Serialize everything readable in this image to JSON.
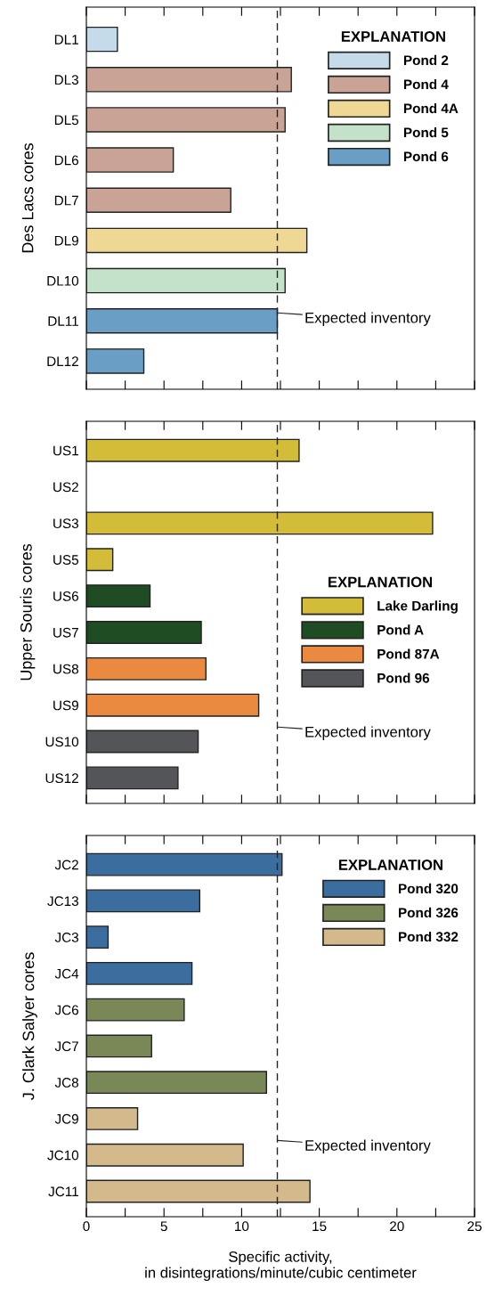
{
  "chart_data": [
    {
      "type": "bar",
      "orientation": "horizontal",
      "ylabel": "Des Lacs cores",
      "legend_title": "EXPLANATION",
      "legend": "top right",
      "grid": false,
      "tick_labels": "y",
      "categories": [
        "DL1",
        "DL3",
        "DL5",
        "DL6",
        "DL7",
        "DL9",
        "DL10",
        "DL11",
        "DL12"
      ],
      "series": [
        {
          "name": "Pond 2",
          "color": "#c5dbe9",
          "values": [
            2.0,
            null,
            null,
            null,
            null,
            null,
            null,
            null,
            null
          ]
        },
        {
          "name": "Pond 4",
          "color": "#c9a496",
          "values": [
            null,
            13.2,
            12.8,
            5.6,
            9.3,
            null,
            null,
            null,
            null
          ]
        },
        {
          "name": "Pond 4A",
          "color": "#eed894",
          "values": [
            null,
            null,
            null,
            null,
            null,
            14.2,
            null,
            null,
            null
          ]
        },
        {
          "name": "Pond 5",
          "color": "#c3e2c9",
          "values": [
            null,
            null,
            null,
            null,
            null,
            null,
            12.8,
            null,
            null
          ]
        },
        {
          "name": "Pond 6",
          "color": "#6a9ec4",
          "values": [
            null,
            null,
            null,
            null,
            null,
            null,
            null,
            12.3,
            3.7
          ]
        }
      ],
      "xlim": [
        0,
        25
      ],
      "xticks": [
        0,
        {
          "value": 2.5,
          "label": null
        },
        5,
        {
          "value": 7.5,
          "label": null
        },
        10,
        {
          "value": 12.5,
          "label": null
        },
        15,
        {
          "value": 17.5,
          "label": null
        },
        20,
        {
          "value": 22.5,
          "label": null
        },
        25
      ],
      "ref_lines": [
        {
          "axis": "x",
          "value": 12.3,
          "label": "Expected inventory",
          "line_style": "dashed"
        }
      ]
    },
    {
      "type": "bar",
      "orientation": "horizontal",
      "ylabel": "Upper Souris cores",
      "legend_title": "EXPLANATION",
      "legend": "right",
      "grid": false,
      "tick_labels": "y",
      "categories": [
        "US1",
        "US2",
        "US3",
        "US5",
        "US6",
        "US7",
        "US8",
        "US9",
        "US10",
        "US12"
      ],
      "series": [
        {
          "name": "Lake Darling",
          "color": "#d3bd38",
          "values": [
            13.7,
            null,
            22.3,
            1.7,
            null,
            null,
            null,
            null,
            null,
            null
          ]
        },
        {
          "name": "Pond A",
          "color": "#204c24",
          "values": [
            null,
            null,
            null,
            null,
            4.1,
            7.4,
            null,
            null,
            null,
            null
          ]
        },
        {
          "name": "Pond 87A",
          "color": "#ea8a40",
          "values": [
            null,
            null,
            null,
            null,
            null,
            null,
            7.7,
            11.1,
            null,
            null
          ]
        },
        {
          "name": "Pond 96",
          "color": "#545558",
          "values": [
            null,
            null,
            null,
            null,
            null,
            null,
            null,
            null,
            7.2,
            5.9
          ]
        }
      ],
      "xlim": [
        0,
        25
      ],
      "xticks": [
        0,
        {
          "value": 2.5,
          "label": null
        },
        5,
        {
          "value": 7.5,
          "label": null
        },
        10,
        {
          "value": 12.5,
          "label": null
        },
        15,
        {
          "value": 17.5,
          "label": null
        },
        20,
        {
          "value": 22.5,
          "label": null
        },
        25
      ],
      "ref_lines": [
        {
          "axis": "x",
          "value": 12.3,
          "label": "Expected inventory",
          "line_style": "dashed"
        }
      ]
    },
    {
      "type": "bar",
      "orientation": "horizontal",
      "ylabel": "J. Clark Salyer cores",
      "xlabel": "Specific activity,\nin disintegrations/minute/cubic centimeter",
      "legend_title": "EXPLANATION",
      "legend": "top right",
      "grid": false,
      "categories": [
        "JC2",
        "JC13",
        "JC3",
        "JC4",
        "JC6",
        "JC7",
        "JC8",
        "JC9",
        "JC10",
        "JC11"
      ],
      "series": [
        {
          "name": "Pond 320",
          "color": "#3b6e9f",
          "values": [
            12.6,
            7.3,
            1.4,
            6.8,
            null,
            null,
            null,
            null,
            null,
            null
          ]
        },
        {
          "name": "Pond 326",
          "color": "#7a8857",
          "values": [
            null,
            null,
            null,
            null,
            6.3,
            4.2,
            11.6,
            null,
            null,
            null
          ]
        },
        {
          "name": "Pond 332",
          "color": "#d4b98c",
          "values": [
            null,
            null,
            null,
            null,
            null,
            null,
            null,
            3.3,
            10.1,
            14.4
          ]
        }
      ],
      "xlim": [
        0,
        25
      ],
      "xticks": [
        0,
        {
          "value": 2.5,
          "label": null
        },
        5,
        {
          "value": 7.5,
          "label": null
        },
        10,
        {
          "value": 12.5,
          "label": null
        },
        15,
        {
          "value": 17.5,
          "label": null
        },
        20,
        {
          "value": 22.5,
          "label": null
        },
        25
      ],
      "ref_lines": [
        {
          "axis": "x",
          "value": 12.3,
          "label": "Expected inventory",
          "line_style": "dashed"
        }
      ]
    }
  ]
}
